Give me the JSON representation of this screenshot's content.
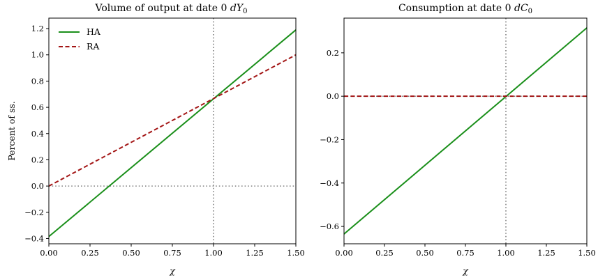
{
  "colors": {
    "HA": "#1a8f1a",
    "RA": "#a31515",
    "ref": "#808080"
  },
  "chart_data": [
    {
      "type": "line",
      "title_text": "Volume of output at date 0 ",
      "title_var": "dY",
      "title_sub": "0",
      "xlabel": "χ",
      "ylabel": "Percent of ss.",
      "xlim": [
        0,
        1.5
      ],
      "ylim": [
        -0.44,
        1.28
      ],
      "xticks": [
        "0.00",
        "0.25",
        "0.50",
        "0.75",
        "1.00",
        "1.25",
        "1.50"
      ],
      "yticks": [
        "−0.4",
        "−0.2",
        "0.0",
        "0.2",
        "0.4",
        "0.6",
        "0.8",
        "1.0",
        "1.2"
      ],
      "legend_position": "upper-left",
      "ref_lines": {
        "x": 1.0,
        "y": 0.0
      },
      "series": [
        {
          "name": "HA",
          "style": "solid",
          "x": [
            0,
            1.5
          ],
          "y": [
            -0.385,
            1.19
          ]
        },
        {
          "name": "RA",
          "style": "dashed",
          "x": [
            0,
            1.5
          ],
          "y": [
            0.0,
            1.0
          ]
        }
      ]
    },
    {
      "type": "line",
      "title_text": "Consumption at date 0 ",
      "title_var": "dC",
      "title_sub": "0",
      "xlabel": "χ",
      "ylabel": "",
      "xlim": [
        0,
        1.5
      ],
      "ylim": [
        -0.68,
        0.36
      ],
      "xticks": [
        "0.00",
        "0.25",
        "0.50",
        "0.75",
        "1.00",
        "1.25",
        "1.50"
      ],
      "yticks": [
        "−0.6",
        "−0.4",
        "−0.2",
        "0.0",
        "0.2"
      ],
      "ref_lines": {
        "x": 1.0,
        "y": 0.0
      },
      "series": [
        {
          "name": "HA",
          "style": "solid",
          "x": [
            0,
            1.5
          ],
          "y": [
            -0.635,
            0.315
          ]
        },
        {
          "name": "RA",
          "style": "dashed",
          "x": [
            0,
            1.5
          ],
          "y": [
            0.0,
            0.0
          ]
        }
      ]
    }
  ]
}
